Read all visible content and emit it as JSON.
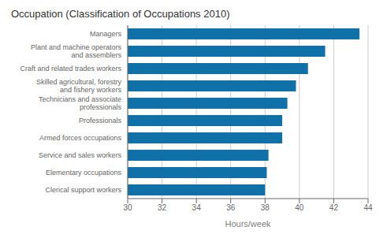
{
  "chart_data": {
    "type": "bar",
    "orientation": "horizontal",
    "title": "Occupation (Classification of Occupations 2010)",
    "categories": [
      "Clerical support workers",
      "Elementary occupations",
      "Service and sales workers",
      "Armed forces occupations",
      "Professionals",
      "Technicians and associate\nprofessionals",
      "Skilled agricultural, forestry\nand fishery workers",
      "Craft and related trades workers",
      "Plant and machine operators\nand assemblers",
      "Managers"
    ],
    "values": [
      38.0,
      38.1,
      38.2,
      39.0,
      39.0,
      39.3,
      39.8,
      40.5,
      41.5,
      43.5
    ],
    "color": "#1070a8",
    "xlabel": "Hours/week",
    "xlim": [
      30,
      44
    ],
    "xticks": [
      30,
      32,
      34,
      36,
      38,
      40,
      42,
      44
    ],
    "grid": true
  }
}
